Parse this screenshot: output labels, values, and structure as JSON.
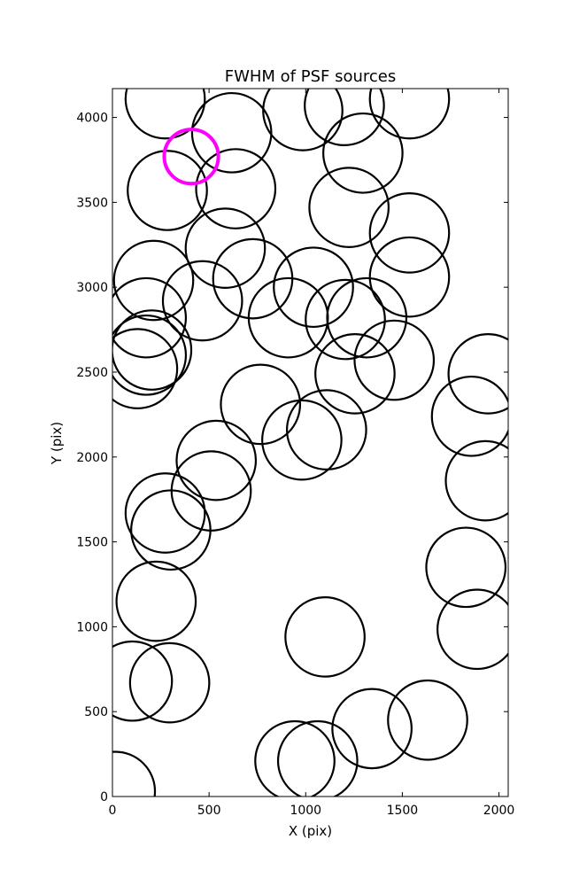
{
  "chart_data": {
    "type": "scatter",
    "marker": "open-circle",
    "title": "FWHM of PSF sources",
    "xlabel": "X (pix)",
    "ylabel": "Y (pix)",
    "xlim": [
      0,
      2048
    ],
    "ylim": [
      0,
      4170
    ],
    "xticks": [
      0,
      500,
      1000,
      1500,
      2000
    ],
    "yticks": [
      0,
      500,
      1000,
      1500,
      2000,
      2500,
      3000,
      3500,
      4000
    ],
    "grid": false,
    "legend": "none",
    "circle_radius": 205,
    "circle_color": "#000000",
    "highlight_color": "#ff00ff",
    "highlight": {
      "x": 408,
      "y": 3770,
      "r": 140
    },
    "points": [
      {
        "x": 273,
        "y": 4110
      },
      {
        "x": 617,
        "y": 3910
      },
      {
        "x": 985,
        "y": 4040
      },
      {
        "x": 1200,
        "y": 4070
      },
      {
        "x": 1537,
        "y": 4110
      },
      {
        "x": 1296,
        "y": 3790
      },
      {
        "x": 284,
        "y": 3570
      },
      {
        "x": 638,
        "y": 3580
      },
      {
        "x": 1224,
        "y": 3470
      },
      {
        "x": 1537,
        "y": 3320
      },
      {
        "x": 584,
        "y": 3230
      },
      {
        "x": 213,
        "y": 3040
      },
      {
        "x": 726,
        "y": 3050
      },
      {
        "x": 1040,
        "y": 3000
      },
      {
        "x": 1537,
        "y": 3060
      },
      {
        "x": 466,
        "y": 2920
      },
      {
        "x": 175,
        "y": 2820
      },
      {
        "x": 910,
        "y": 2820
      },
      {
        "x": 1205,
        "y": 2810
      },
      {
        "x": 1316,
        "y": 2820
      },
      {
        "x": 203,
        "y": 2630
      },
      {
        "x": 175,
        "y": 2600
      },
      {
        "x": 1458,
        "y": 2570
      },
      {
        "x": 130,
        "y": 2520
      },
      {
        "x": 1255,
        "y": 2490
      },
      {
        "x": 1944,
        "y": 2490
      },
      {
        "x": 766,
        "y": 2310
      },
      {
        "x": 1858,
        "y": 2240
      },
      {
        "x": 1108,
        "y": 2160
      },
      {
        "x": 980,
        "y": 2100
      },
      {
        "x": 537,
        "y": 1980
      },
      {
        "x": 1930,
        "y": 1860
      },
      {
        "x": 511,
        "y": 1800
      },
      {
        "x": 273,
        "y": 1670
      },
      {
        "x": 302,
        "y": 1570
      },
      {
        "x": 1829,
        "y": 1350
      },
      {
        "x": 226,
        "y": 1150
      },
      {
        "x": 1887,
        "y": 985
      },
      {
        "x": 1100,
        "y": 940
      },
      {
        "x": 103,
        "y": 680
      },
      {
        "x": 296,
        "y": 670
      },
      {
        "x": 1631,
        "y": 450
      },
      {
        "x": 1343,
        "y": 400
      },
      {
        "x": 944,
        "y": 210
      },
      {
        "x": 1062,
        "y": 210
      },
      {
        "x": 15,
        "y": 30
      }
    ]
  }
}
